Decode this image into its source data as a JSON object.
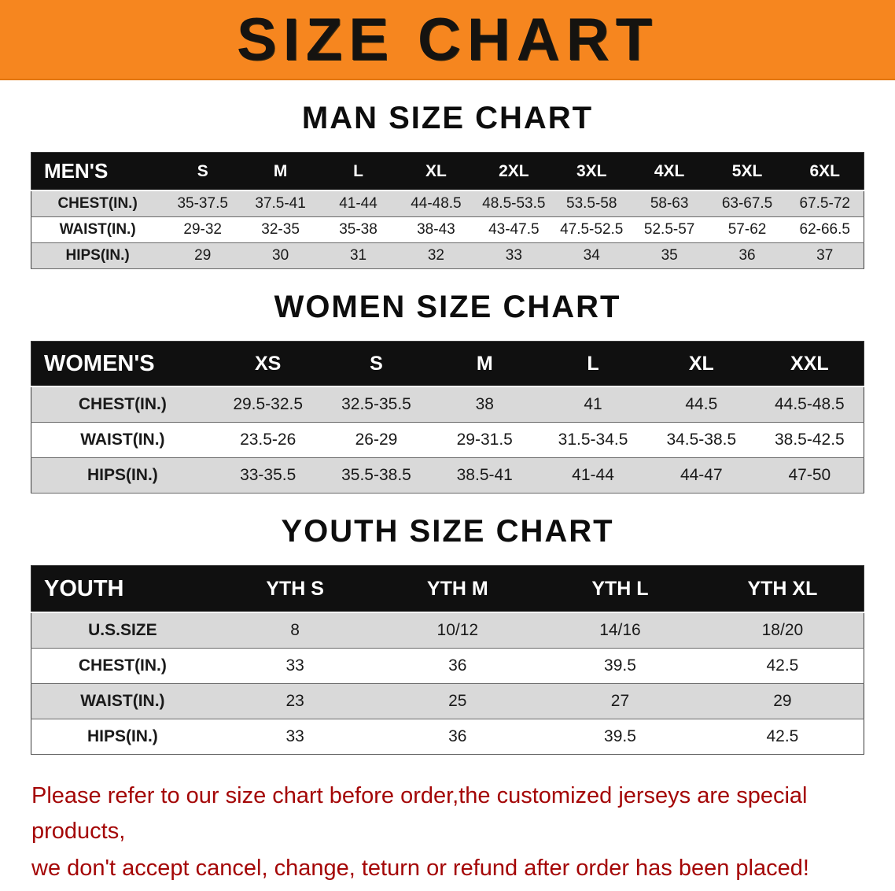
{
  "banner": {
    "title": "SIZE CHART",
    "bg_color": "#f6861f"
  },
  "sections": [
    {
      "heading": "MAN SIZE CHART",
      "table": {
        "header": [
          "MEN'S",
          "S",
          "M",
          "L",
          "XL",
          "2XL",
          "3XL",
          "4XL",
          "5XL",
          "6XL"
        ],
        "rows": [
          [
            "CHEST(IN.)",
            "35-37.5",
            "37.5-41",
            "41-44",
            "44-48.5",
            "48.5-53.5",
            "53.5-58",
            "58-63",
            "63-67.5",
            "67.5-72"
          ],
          [
            "WAIST(IN.)",
            "29-32",
            "32-35",
            "35-38",
            "38-43",
            "43-47.5",
            "47.5-52.5",
            "52.5-57",
            "57-62",
            "62-66.5"
          ],
          [
            "HIPS(IN.)",
            "29",
            "30",
            "31",
            "32",
            "33",
            "34",
            "35",
            "36",
            "37"
          ]
        ]
      }
    },
    {
      "heading": "WOMEN SIZE CHART",
      "table": {
        "header": [
          "WOMEN'S",
          "XS",
          "S",
          "M",
          "L",
          "XL",
          "XXL"
        ],
        "rows": [
          [
            "CHEST(IN.)",
            "29.5-32.5",
            "32.5-35.5",
            "38",
            "41",
            "44.5",
            "44.5-48.5"
          ],
          [
            "WAIST(IN.)",
            "23.5-26",
            "26-29",
            "29-31.5",
            "31.5-34.5",
            "34.5-38.5",
            "38.5-42.5"
          ],
          [
            "HIPS(IN.)",
            "33-35.5",
            "35.5-38.5",
            "38.5-41",
            "41-44",
            "44-47",
            "47-50"
          ]
        ]
      }
    },
    {
      "heading": "YOUTH SIZE CHART",
      "table": {
        "header": [
          "YOUTH",
          "YTH S",
          "YTH M",
          "YTH L",
          "YTH XL"
        ],
        "rows": [
          [
            "U.S.SIZE",
            "8",
            "10/12",
            "14/16",
            "18/20"
          ],
          [
            "CHEST(IN.)",
            "33",
            "36",
            "39.5",
            "42.5"
          ],
          [
            "WAIST(IN.)",
            "23",
            "25",
            "27",
            "29"
          ],
          [
            "HIPS(IN.)",
            "33",
            "36",
            "39.5",
            "42.5"
          ]
        ]
      }
    }
  ],
  "footer": {
    "lines": [
      "Please refer to our size chart before order,the customized jerseys are special products,",
      "we don't accept cancel, change, teturn or refund after order has been placed!"
    ],
    "color": "#a40606"
  }
}
